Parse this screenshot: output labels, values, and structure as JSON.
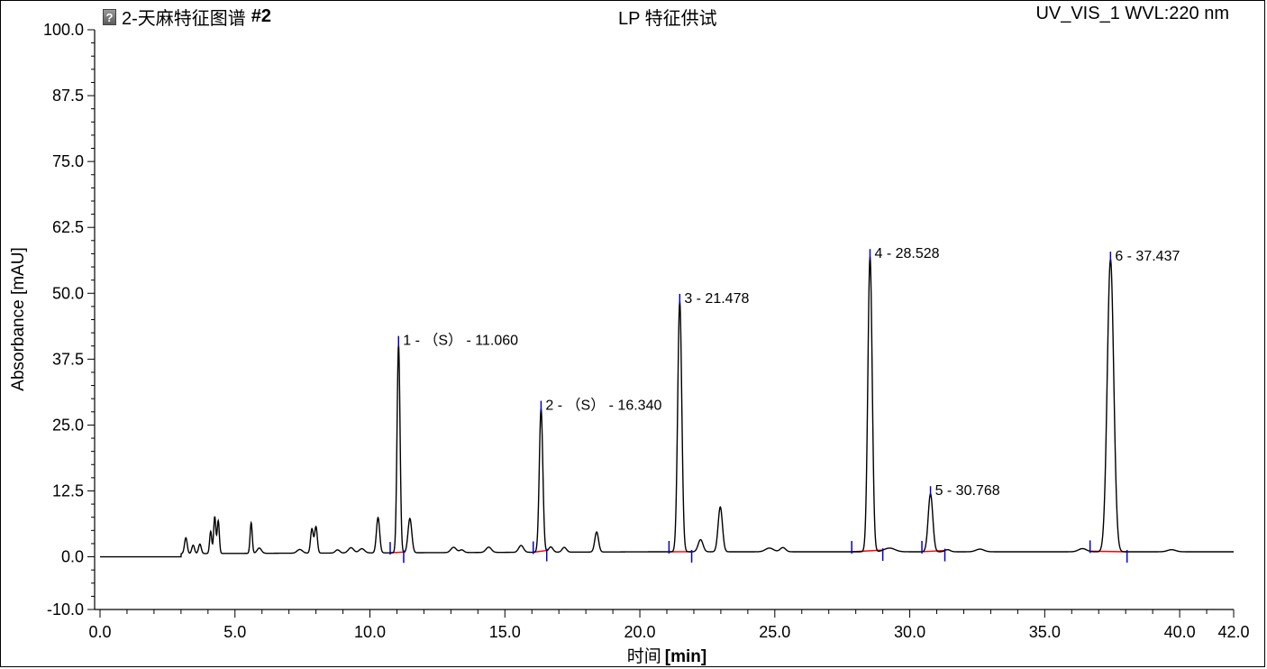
{
  "header": {
    "icon": "help-icon",
    "sample_name": "2-天麻特征图谱",
    "sample_number": "#2",
    "method_title": "LP 特征供试",
    "channel": "UV_VIS_1 WVL:220 nm"
  },
  "chart_data": {
    "type": "line",
    "title": "",
    "xlabel": "时间",
    "xlabel_unit": "[min]",
    "ylabel": "Absorbance [mAU]",
    "xlim": [
      0,
      42
    ],
    "ylim": [
      -10,
      100
    ],
    "grid": false,
    "x_ticks": [
      "0.0",
      "5.0",
      "10.0",
      "15.0",
      "20.0",
      "25.0",
      "30.0",
      "35.0",
      "40.0",
      "42.0"
    ],
    "y_ticks": [
      "100.0",
      "87.5",
      "75.0",
      "62.5",
      "50.0",
      "37.5",
      "25.0",
      "12.5",
      "0.0",
      "-10.0"
    ],
    "colors": {
      "trace": "#000000",
      "baseline": "#ff0000",
      "markers": "#0000cc"
    },
    "baseline_level": 0,
    "series": [
      {
        "peaks": [
          [
            3.18,
            3.0,
            0.05
          ],
          [
            3.45,
            1.6,
            0.05
          ],
          [
            3.7,
            1.8,
            0.05
          ],
          [
            4.1,
            4.2,
            0.04
          ],
          [
            4.25,
            7.0,
            0.04
          ],
          [
            4.38,
            6.2,
            0.04
          ],
          [
            5.6,
            5.8,
            0.04
          ],
          [
            5.9,
            1.0,
            0.08
          ],
          [
            7.4,
            0.7,
            0.1
          ],
          [
            7.85,
            4.6,
            0.05
          ],
          [
            8.0,
            5.0,
            0.05
          ],
          [
            8.8,
            0.6,
            0.08
          ],
          [
            9.3,
            1.0,
            0.1
          ],
          [
            9.7,
            0.8,
            0.1
          ],
          [
            10.3,
            6.7,
            0.06
          ],
          [
            11.06,
            39.5,
            0.055
          ],
          [
            11.48,
            6.5,
            0.07
          ],
          [
            13.1,
            1.0,
            0.1
          ],
          [
            13.4,
            0.5,
            0.08
          ],
          [
            14.4,
            1.0,
            0.1
          ],
          [
            15.6,
            1.3,
            0.09
          ],
          [
            16.34,
            27.2,
            0.065
          ],
          [
            16.7,
            1.0,
            0.08
          ],
          [
            17.2,
            0.9,
            0.08
          ],
          [
            18.4,
            3.8,
            0.07
          ],
          [
            21.478,
            47.5,
            0.075
          ],
          [
            22.25,
            2.3,
            0.09
          ],
          [
            22.98,
            8.5,
            0.08
          ],
          [
            24.8,
            0.7,
            0.15
          ],
          [
            25.3,
            0.8,
            0.1
          ],
          [
            28.528,
            56.0,
            0.08
          ],
          [
            29.25,
            0.7,
            0.2
          ],
          [
            30.768,
            11.0,
            0.085
          ],
          [
            31.4,
            0.4,
            0.1
          ],
          [
            32.6,
            0.5,
            0.15
          ],
          [
            36.4,
            0.6,
            0.15
          ],
          [
            37.437,
            55.5,
            0.12
          ],
          [
            39.7,
            0.4,
            0.15
          ]
        ]
      }
    ],
    "integration_baselines": [
      [
        10.75,
        11.25
      ],
      [
        16.05,
        16.55
      ],
      [
        21.08,
        21.92
      ],
      [
        27.85,
        29.0
      ],
      [
        30.45,
        31.3
      ],
      [
        36.68,
        38.05
      ]
    ],
    "annotations": [
      {
        "x": 11.06,
        "y": 39.5,
        "label": "1 - （S） - 11.060"
      },
      {
        "x": 16.34,
        "y": 27.2,
        "label": "2 - （S） - 16.340"
      },
      {
        "x": 21.478,
        "y": 47.5,
        "label": "3 - 21.478"
      },
      {
        "x": 28.528,
        "y": 56.0,
        "label": "4 - 28.528"
      },
      {
        "x": 30.768,
        "y": 11.0,
        "label": "5 - 30.768"
      },
      {
        "x": 37.437,
        "y": 55.5,
        "label": "6 - 37.437"
      }
    ]
  }
}
